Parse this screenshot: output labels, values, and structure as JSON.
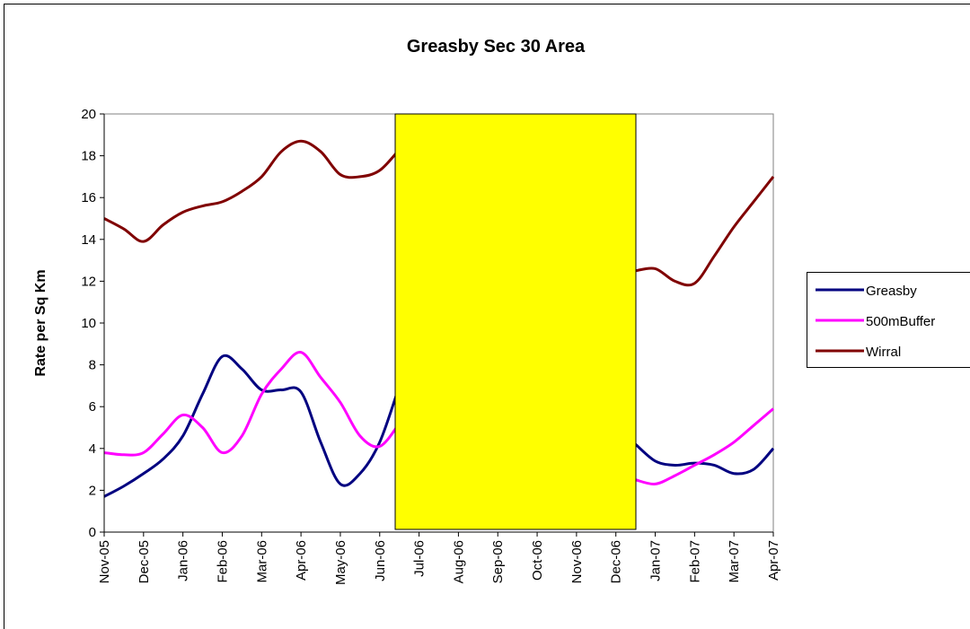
{
  "chart_data": {
    "type": "line",
    "title": "Greasby Sec 30 Area",
    "y_label": "Rate per Sq Km",
    "categories": [
      "Nov-05",
      null,
      "Dec-05",
      null,
      "Jan-06",
      null,
      "Feb-06",
      null,
      "Mar-06",
      null,
      "Apr-06",
      null,
      "May-06",
      null,
      "Jun-06",
      null,
      "Jul-06",
      null,
      "Aug-06",
      null,
      "Sep-06",
      null,
      "Oct-06",
      null,
      "Nov-06",
      null,
      "Dec-06",
      null,
      "Jan-07",
      null,
      "Feb-07",
      null,
      "Mar-07",
      null,
      "Apr-07"
    ],
    "series": [
      {
        "name": "Greasby",
        "color": "#000080",
        "values": [
          1.7,
          2.2,
          2.8,
          3.5,
          4.6,
          6.6,
          8.4,
          7.8,
          6.8,
          6.8,
          6.7,
          4.3,
          2.3,
          2.8,
          4.3,
          7.0,
          null,
          null,
          null,
          null,
          null,
          null,
          null,
          null,
          null,
          null,
          null,
          4.2,
          3.4,
          3.2,
          3.3,
          3.2,
          2.8,
          3.0,
          4.0
        ]
      },
      {
        "name": "500mBuffer",
        "color": "#ff00ff",
        "values": [
          3.8,
          3.7,
          3.8,
          4.7,
          5.6,
          5.0,
          3.8,
          4.6,
          6.6,
          7.8,
          8.6,
          7.4,
          6.2,
          4.6,
          4.1,
          5.2,
          null,
          null,
          null,
          null,
          null,
          null,
          null,
          null,
          null,
          null,
          null,
          2.5,
          2.3,
          2.7,
          3.2,
          3.7,
          4.3,
          5.1,
          5.9
        ]
      },
      {
        "name": "Wirral",
        "color": "#800000",
        "values": [
          15.0,
          14.5,
          13.9,
          14.7,
          15.3,
          15.6,
          15.8,
          16.3,
          17.0,
          18.2,
          18.7,
          18.2,
          17.1,
          17.0,
          17.3,
          18.3,
          null,
          null,
          null,
          null,
          null,
          null,
          null,
          null,
          null,
          null,
          null,
          12.5,
          12.6,
          12.0,
          11.9,
          13.2,
          14.6,
          15.8,
          17.0
        ]
      }
    ],
    "ylim": [
      0,
      20
    ],
    "yticks": [
      0,
      2,
      4,
      6,
      8,
      10,
      12,
      14,
      16,
      18,
      20
    ],
    "grid": false,
    "legend": "right"
  }
}
